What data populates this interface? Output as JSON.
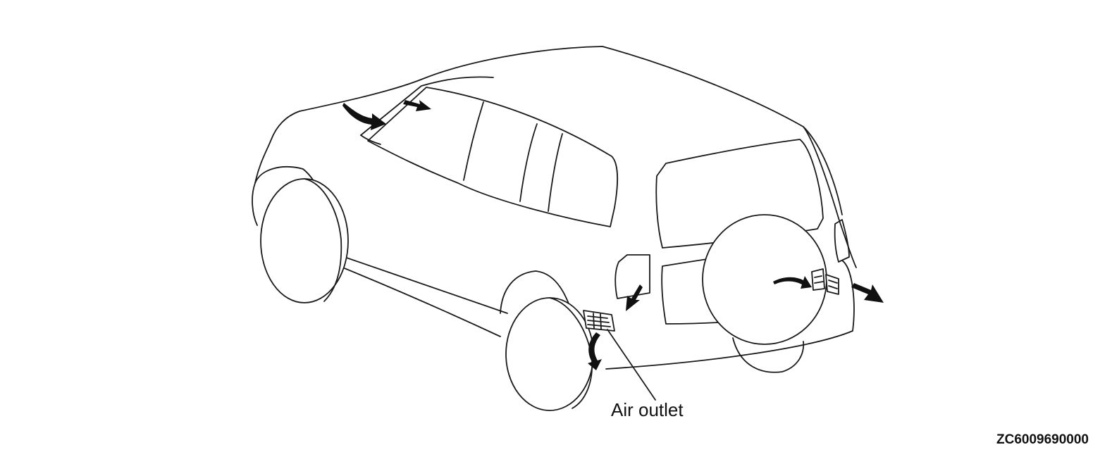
{
  "callout": {
    "label": "Air outlet"
  },
  "figure": {
    "code": "ZC6009690000"
  }
}
